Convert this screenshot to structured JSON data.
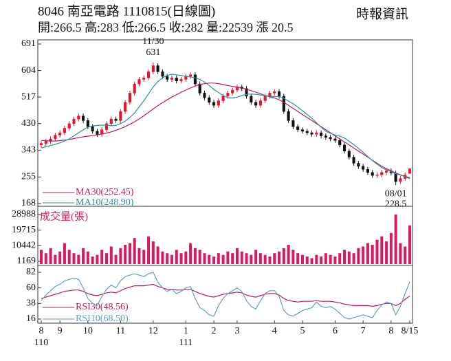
{
  "header": {
    "title": "8046  南亞電路 1110815(日線圖)",
    "source": "時報資訊",
    "quote": "開:266.5 高:283 低:266.5 收:282 量:22539 漲 20.5"
  },
  "chart_data": [
    {
      "type": "candlestick",
      "open": [
        360,
        365,
        372,
        380,
        392,
        400,
        415,
        430,
        445,
        455,
        440,
        420,
        405,
        395,
        410,
        430,
        445,
        440,
        470,
        500,
        530,
        560,
        575,
        580,
        600,
        620,
        600,
        585,
        575,
        580,
        570,
        575,
        585,
        590,
        560,
        530,
        515,
        500,
        490,
        505,
        520,
        530,
        540,
        550,
        545,
        520,
        500,
        490,
        505,
        520,
        530,
        535,
        520,
        470,
        440,
        420,
        410,
        405,
        400,
        395,
        400,
        390,
        385,
        380,
        375,
        360,
        340,
        320,
        300,
        290,
        280,
        270,
        260,
        262,
        270,
        275,
        268,
        240,
        250,
        266.5
      ],
      "high": [
        373,
        380,
        388,
        400,
        408,
        423,
        438,
        453,
        463,
        463,
        448,
        428,
        413,
        418,
        438,
        453,
        453,
        478,
        508,
        538,
        568,
        583,
        588,
        608,
        631,
        628,
        608,
        593,
        588,
        588,
        583,
        593,
        598,
        598,
        568,
        538,
        523,
        508,
        513,
        528,
        538,
        548,
        558,
        558,
        553,
        528,
        508,
        513,
        528,
        538,
        543,
        543,
        528,
        478,
        448,
        428,
        418,
        413,
        408,
        408,
        408,
        398,
        393,
        388,
        383,
        368,
        348,
        328,
        308,
        298,
        288,
        278,
        270,
        278,
        283,
        283,
        276,
        258,
        269.5,
        283
      ],
      "low": [
        352,
        357,
        364,
        372,
        384,
        392,
        407,
        422,
        437,
        432,
        412,
        397,
        387,
        387,
        402,
        422,
        432,
        432,
        462,
        492,
        522,
        552,
        567,
        572,
        592,
        592,
        577,
        567,
        567,
        562,
        562,
        567,
        577,
        552,
        522,
        507,
        492,
        482,
        482,
        497,
        512,
        522,
        532,
        537,
        512,
        492,
        482,
        482,
        497,
        512,
        522,
        512,
        462,
        432,
        412,
        402,
        397,
        392,
        387,
        387,
        382,
        377,
        372,
        367,
        352,
        332,
        312,
        292,
        282,
        272,
        262,
        252,
        252,
        254,
        262,
        260,
        228.5,
        232,
        242,
        266.5
      ],
      "close": [
        365,
        372,
        380,
        392,
        400,
        415,
        430,
        445,
        455,
        440,
        420,
        405,
        395,
        410,
        430,
        445,
        440,
        470,
        500,
        530,
        560,
        575,
        580,
        600,
        620,
        600,
        585,
        575,
        580,
        570,
        575,
        585,
        590,
        560,
        530,
        515,
        500,
        490,
        505,
        520,
        530,
        540,
        550,
        545,
        520,
        500,
        490,
        505,
        520,
        530,
        535,
        520,
        470,
        440,
        420,
        410,
        405,
        400,
        395,
        400,
        390,
        385,
        380,
        375,
        360,
        340,
        320,
        300,
        290,
        280,
        270,
        260,
        262,
        270,
        275,
        268,
        240,
        250,
        261.5,
        282
      ],
      "up_color": "#e0182d",
      "down_color": "#111111",
      "series": [
        {
          "name": "MA30(252.45)",
          "color": "#c2185b",
          "values": [
            375,
            374,
            373,
            373,
            374,
            376,
            378,
            381,
            384,
            387,
            389,
            391,
            393,
            396,
            399,
            403,
            408,
            414,
            420,
            428,
            436,
            446,
            456,
            467,
            478,
            489,
            499,
            508,
            517,
            525,
            533,
            540,
            547,
            553,
            558,
            561,
            563,
            563,
            561,
            558,
            555,
            552,
            550,
            547,
            543,
            538,
            533,
            528,
            522,
            518,
            514,
            508,
            500,
            490,
            480,
            470,
            460,
            450,
            440,
            430,
            420,
            410,
            400,
            390,
            380,
            370,
            360,
            350,
            340,
            330,
            320,
            310,
            300,
            290,
            282,
            275,
            268,
            262,
            257,
            252.45
          ]
        },
        {
          "name": "MA10(248.90)",
          "color": "#2a8fa0",
          "values": [
            350,
            354,
            358,
            362,
            367,
            373,
            380,
            390,
            400,
            410,
            418,
            422,
            424,
            425,
            425,
            423,
            424,
            430,
            438,
            450,
            465,
            485,
            505,
            528,
            550,
            568,
            580,
            588,
            592,
            590,
            588,
            585,
            583,
            580,
            575,
            566,
            555,
            542,
            532,
            522,
            515,
            514,
            517,
            522,
            526,
            527,
            526,
            524,
            522,
            520,
            518,
            519,
            513,
            504,
            495,
            484,
            472,
            460,
            448,
            433,
            418,
            405,
            398,
            393,
            389,
            383,
            372,
            361,
            349,
            336,
            322,
            309,
            297,
            286,
            278,
            272,
            266,
            261,
            256,
            248.9
          ]
        }
      ],
      "ylim": [
        168,
        691
      ],
      "yticks": [
        691,
        604,
        517,
        430,
        343,
        255,
        168
      ],
      "xlim": [
        0,
        79
      ],
      "annotations": [
        {
          "label": "11/30",
          "value": 631
        },
        {
          "label": "08/01",
          "value": 228.5
        }
      ]
    },
    {
      "type": "bar",
      "title": "成交量(張)",
      "color": "#d81b60",
      "values": [
        8000,
        6000,
        9000,
        5000,
        7000,
        12000,
        8000,
        6000,
        5000,
        9000,
        7000,
        4000,
        5000,
        8000,
        6000,
        10000,
        5000,
        9000,
        11000,
        12000,
        15000,
        9000,
        8000,
        16000,
        13000,
        10000,
        7000,
        6000,
        5000,
        8000,
        6000,
        7000,
        12000,
        9000,
        8000,
        6000,
        5000,
        4000,
        6000,
        5000,
        7000,
        6000,
        9000,
        7000,
        6000,
        5000,
        8000,
        6000,
        5000,
        4000,
        6000,
        7000,
        9000,
        11000,
        8000,
        6000,
        5000,
        4000,
        3000,
        5000,
        4000,
        6000,
        5000,
        4000,
        6000,
        8000,
        7000,
        6000,
        9000,
        10000,
        12000,
        11000,
        14000,
        16000,
        13000,
        18000,
        28988,
        12000,
        10000,
        22539
      ],
      "ylim": [
        1169,
        28988
      ],
      "yticks": [
        28988,
        19715,
        10442,
        1169
      ],
      "xlim": [
        0,
        79
      ]
    },
    {
      "type": "line",
      "series": [
        {
          "name": "RSI30(48.56)",
          "color": "#c2185b",
          "values": [
            45,
            47,
            49,
            51,
            53,
            55,
            56,
            57,
            57,
            55,
            52,
            50,
            49,
            51,
            53,
            54,
            53,
            56,
            59,
            61,
            63,
            63,
            63,
            64,
            65,
            62,
            60,
            58,
            58,
            57,
            57,
            58,
            58,
            55,
            52,
            50,
            48,
            47,
            49,
            51,
            52,
            53,
            54,
            53,
            50,
            48,
            47,
            49,
            51,
            52,
            52,
            50,
            45,
            42,
            41,
            40,
            41,
            41,
            41,
            42,
            41,
            41,
            41,
            40,
            39,
            37,
            36,
            35,
            35,
            35,
            35,
            34,
            35,
            37,
            38,
            38,
            35,
            38,
            44,
            48.56
          ]
        },
        {
          "name": "RSI10(68.50)",
          "color": "#5aa0c8",
          "values": [
            42,
            50,
            56,
            62,
            65,
            70,
            72,
            74,
            72,
            60,
            45,
            38,
            35,
            48,
            58,
            64,
            60,
            70,
            76,
            78,
            80,
            78,
            76,
            80,
            82,
            68,
            60,
            55,
            58,
            52,
            55,
            60,
            62,
            45,
            32,
            28,
            22,
            20,
            35,
            45,
            52,
            56,
            60,
            55,
            42,
            34,
            30,
            42,
            52,
            56,
            56,
            48,
            28,
            22,
            20,
            24,
            28,
            30,
            32,
            40,
            34,
            32,
            34,
            30,
            24,
            18,
            16,
            18,
            20,
            22,
            20,
            18,
            28,
            36,
            40,
            38,
            22,
            34,
            52,
            68.5
          ]
        }
      ],
      "ylim": [
        16,
        82
      ],
      "yticks": [
        82,
        60,
        38,
        16
      ],
      "xlim": [
        0,
        79
      ],
      "xticks": [
        {
          "value": 0,
          "label": "8"
        },
        {
          "value": 4,
          "label": "9"
        },
        {
          "value": 10,
          "label": "10"
        },
        {
          "value": 17,
          "label": "11"
        },
        {
          "value": 24,
          "label": "12"
        },
        {
          "value": 31,
          "label": "1"
        },
        {
          "value": 37,
          "label": "2"
        },
        {
          "value": 42,
          "label": "3"
        },
        {
          "value": 50,
          "label": "4"
        },
        {
          "value": 56,
          "label": "5"
        },
        {
          "value": 63,
          "label": "6"
        },
        {
          "value": 69,
          "label": "7"
        },
        {
          "value": 75,
          "label": "8"
        },
        {
          "value": 79,
          "label": "8/15"
        }
      ],
      "year_ticks": [
        {
          "value": 0,
          "label": "110"
        },
        {
          "value": 31,
          "label": "111"
        }
      ]
    }
  ]
}
